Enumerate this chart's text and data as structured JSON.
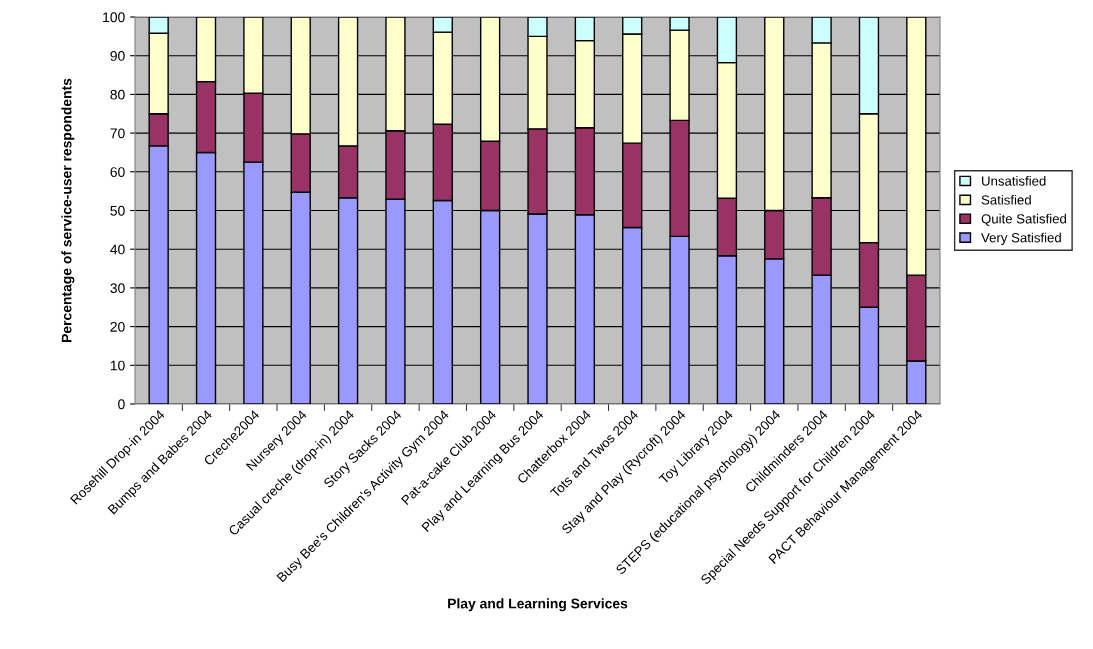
{
  "chart_data": {
    "type": "bar",
    "stacked": true,
    "xlabel": "Play and Learning Services",
    "ylabel": "Percentage of service-user respondents",
    "categories": [
      "Rosehill Drop-in 2004",
      "Bumps and Babes 2004",
      "Creche2004",
      "Nursery 2004",
      "Casual creche (drop-in) 2004",
      "Story Sacks 2004",
      "Busy Bee's Children's Activity Gym 2004",
      "Pat-a-cake Club 2004",
      "Play and Learning Bus 2004",
      "Chatterbox 2004",
      "Tots and Twos 2004",
      "Stay and Play (Rycroft) 2004",
      "Toy Library 2004",
      "STEPS (educational psychology) 2004",
      "Childminders 2004",
      "Special Needs Support for Children 2004",
      "PACT Behaviour Management 2004"
    ],
    "series": [
      {
        "name": "Very Satisfied",
        "color": "#9999ff",
        "values": [
          66.7,
          65,
          62.5,
          54.7,
          53.3,
          52.9,
          52.6,
          50,
          49.1,
          48.9,
          45.6,
          43.3,
          38.3,
          37.5,
          33.3,
          25,
          11.1
        ]
      },
      {
        "name": "Quite Satisfied",
        "color": "#993366",
        "values": [
          8.3,
          18.3,
          17.8,
          15.1,
          13.4,
          17.7,
          19.7,
          17.9,
          22,
          22.5,
          21.8,
          30,
          14.9,
          12.5,
          20,
          16.7,
          22.2
        ]
      },
      {
        "name": "Satisfied",
        "color": "#ffffcc",
        "values": [
          20.8,
          16.7,
          19.7,
          30.2,
          33.3,
          29.4,
          23.8,
          32.1,
          23.9,
          22.5,
          28.2,
          23.3,
          35,
          50,
          40,
          33.3,
          66.7
        ]
      },
      {
        "name": "Unsatisfied",
        "color": "#ccffff",
        "values": [
          4.2,
          null,
          null,
          null,
          null,
          null,
          3.9,
          null,
          5,
          6.1,
          4.4,
          3.4,
          11.8,
          null,
          6.7,
          25,
          null
        ]
      }
    ],
    "ylim": [
      0,
      100
    ],
    "yticks": [
      0,
      10,
      20,
      30,
      40,
      50,
      60,
      70,
      80,
      90,
      100
    ],
    "grid": "y",
    "legend": "right"
  }
}
